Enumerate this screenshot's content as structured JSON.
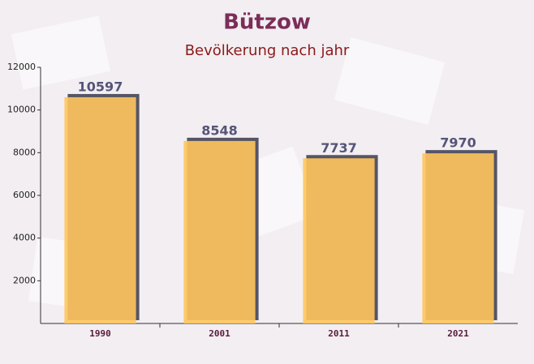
{
  "chart_data": {
    "type": "bar",
    "title": "Bützow",
    "subtitle": "Bevölkerung nach jahr",
    "categories": [
      "1990",
      "2001",
      "2011",
      "2021"
    ],
    "values": [
      10597,
      8548,
      7737,
      7970
    ],
    "color": "#ffc55c",
    "ylim": [
      0,
      12000
    ],
    "yticks": [
      2000,
      4000,
      6000,
      8000,
      10000,
      12000
    ],
    "grid": false
  }
}
